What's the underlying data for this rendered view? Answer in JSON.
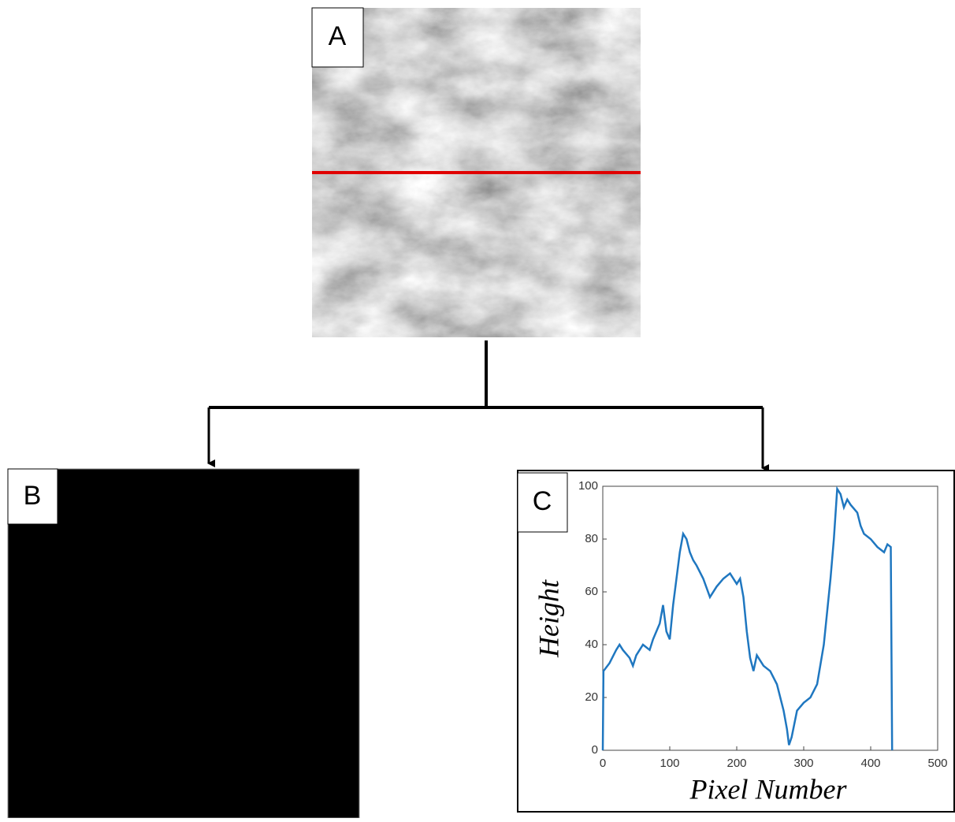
{
  "panels": {
    "A": "A",
    "B": "B",
    "C": "C"
  },
  "chart_data": {
    "type": "line",
    "xlabel": "Pixel Number",
    "ylabel": "Height",
    "xlim": [
      0,
      500
    ],
    "ylim": [
      0,
      100
    ],
    "xticks": [
      0,
      100,
      200,
      300,
      400,
      500
    ],
    "yticks": [
      0,
      20,
      40,
      60,
      80,
      100
    ],
    "series": [
      {
        "color": "#1f77c0",
        "x": [
          0,
          1,
          10,
          20,
          25,
          30,
          40,
          45,
          50,
          60,
          70,
          75,
          80,
          85,
          90,
          95,
          100,
          105,
          110,
          115,
          120,
          125,
          130,
          135,
          140,
          150,
          160,
          170,
          180,
          190,
          200,
          205,
          210,
          215,
          220,
          225,
          230,
          240,
          250,
          260,
          270,
          275,
          278,
          282,
          290,
          300,
          310,
          320,
          330,
          340,
          345,
          350,
          355,
          360,
          365,
          370,
          380,
          385,
          390,
          400,
          410,
          420,
          425,
          430,
          432
        ],
        "values": [
          0,
          30,
          33,
          38,
          40,
          38,
          35,
          32,
          36,
          40,
          38,
          42,
          45,
          48,
          55,
          45,
          42,
          55,
          65,
          75,
          82,
          80,
          75,
          72,
          70,
          65,
          58,
          62,
          65,
          67,
          63,
          65,
          58,
          45,
          35,
          30,
          36,
          32,
          30,
          25,
          15,
          8,
          2,
          5,
          15,
          18,
          20,
          25,
          40,
          65,
          80,
          99,
          97,
          92,
          95,
          93,
          90,
          85,
          82,
          80,
          77,
          75,
          78,
          77,
          0
        ]
      }
    ]
  }
}
